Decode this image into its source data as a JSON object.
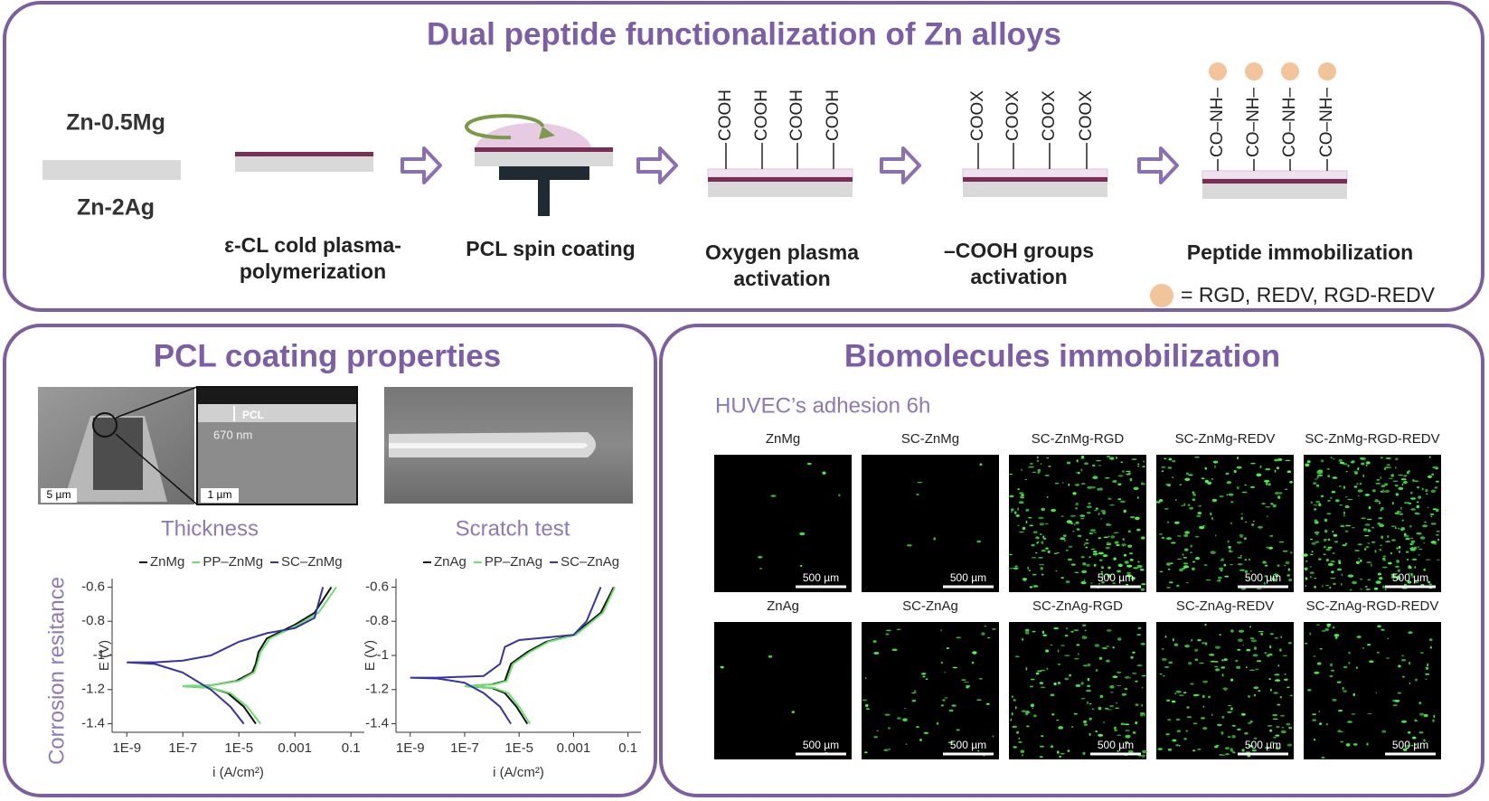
{
  "header": {
    "title": "Dual peptide functionalization of Zn alloys"
  },
  "process": {
    "materials": [
      "Zn-0.5Mg",
      "Zn-2Ag"
    ],
    "steps": [
      {
        "lines": [
          "ε-CL cold plasma-",
          "polymerization"
        ]
      },
      {
        "lines": [
          "PCL spin coating"
        ]
      },
      {
        "lines": [
          "Oxygen plasma",
          "activation"
        ]
      },
      {
        "lines": [
          "–COOH groups",
          "activation"
        ]
      },
      {
        "lines": [
          "Peptide immobilization"
        ]
      }
    ],
    "group_labels": [
      "COOH",
      "COOX",
      "CO–NH–"
    ],
    "legend": "= RGD, REDV, RGD-REDV"
  },
  "pcl": {
    "title": "PCL coating properties",
    "sem": {
      "layer": "PCL",
      "thickness": "670 nm",
      "scale_left": "5 µm",
      "scale_right": "1 µm"
    },
    "thickness_label": "Thickness",
    "scratch_label": "Scratch test",
    "side_label": "Corrosion resitance",
    "plots": [
      {
        "type": "line",
        "xlabel": "i (A/cm²)",
        "ylabel": "E (V)",
        "xscale": "log",
        "xlim": [
          3e-10,
          0.3
        ],
        "ylim": [
          -1.45,
          -0.55
        ],
        "xticks": [
          {
            "value": 1e-09,
            "label": "1E-9"
          },
          {
            "value": 1e-07,
            "label": "1E-7"
          },
          {
            "value": 1e-05,
            "label": "1E-5"
          },
          0.001,
          0.1
        ],
        "yticks": [
          -0.6,
          -0.8,
          -1.0,
          -1.2,
          -1.4
        ],
        "series": [
          {
            "name": "ZnMg",
            "color": "#111111",
            "x": [
              4e-05,
              1.5e-05,
              4e-06,
              1e-06,
              1e-07,
              1e-06,
              8e-06,
              3e-05,
              4e-05,
              5e-05,
              0.0001,
              0.001,
              0.005,
              0.02
            ],
            "y": [
              -1.4,
              -1.3,
              -1.22,
              -1.19,
              -1.18,
              -1.175,
              -1.15,
              -1.1,
              -1.05,
              -0.98,
              -0.9,
              -0.82,
              -0.75,
              -0.6
            ]
          },
          {
            "name": "PP–ZnMg",
            "color": "#6ee06e",
            "x": [
              6e-05,
              2e-05,
              5e-06,
              1e-06,
              1e-07,
              1e-06,
              1e-05,
              3.5e-05,
              4.5e-05,
              6e-05,
              0.00013,
              0.0013,
              0.007,
              0.03
            ],
            "y": [
              -1.4,
              -1.3,
              -1.22,
              -1.19,
              -1.18,
              -1.175,
              -1.15,
              -1.1,
              -1.05,
              -0.98,
              -0.9,
              -0.82,
              -0.75,
              -0.6
            ]
          },
          {
            "name": "SC–ZnMg",
            "color": "#3434a8",
            "x": [
              1.5e-05,
              5e-06,
              1e-06,
              1e-07,
              1e-08,
              1e-09,
              1e-08,
              1e-07,
              1e-06,
              1e-05,
              0.0001,
              0.001,
              0.005,
              0.01
            ],
            "y": [
              -1.4,
              -1.3,
              -1.2,
              -1.1,
              -1.05,
              -1.04,
              -1.04,
              -1.03,
              -1.0,
              -0.92,
              -0.87,
              -0.84,
              -0.78,
              -0.6
            ]
          }
        ]
      },
      {
        "type": "line",
        "xlabel": "i (A/cm²)",
        "ylabel": "E (V)",
        "xscale": "log",
        "xlim": [
          3e-10,
          0.3
        ],
        "ylim": [
          -1.45,
          -0.55
        ],
        "xticks": [
          {
            "value": 1e-09,
            "label": "1E-9"
          },
          {
            "value": 1e-07,
            "label": "1E-7"
          },
          {
            "value": 1e-05,
            "label": "1E-5"
          },
          0.001,
          0.1
        ],
        "yticks": [
          -0.6,
          -0.8,
          -1.0,
          -1.2,
          -1.4
        ],
        "series": [
          {
            "name": "ZnAg",
            "color": "#111111",
            "x": [
              2e-05,
              8e-06,
              3e-06,
              1e-06,
              1e-07,
              1e-06,
              3e-06,
              5e-06,
              2e-05,
              0.0001,
              0.001,
              0.01,
              0.03
            ],
            "y": [
              -1.4,
              -1.3,
              -1.22,
              -1.19,
              -1.18,
              -1.17,
              -1.15,
              -1.05,
              -0.98,
              -0.92,
              -0.88,
              -0.75,
              -0.6
            ]
          },
          {
            "name": "PP–ZnAg",
            "color": "#6ee06e",
            "x": [
              2.5e-05,
              1e-05,
              4e-06,
              1.2e-06,
              1e-07,
              1.2e-06,
              3.5e-06,
              6e-06,
              2.5e-05,
              0.00012,
              0.0012,
              0.012,
              0.033
            ],
            "y": [
              -1.4,
              -1.3,
              -1.22,
              -1.19,
              -1.18,
              -1.17,
              -1.15,
              -1.05,
              -0.98,
              -0.92,
              -0.88,
              -0.75,
              -0.6
            ]
          },
          {
            "name": "SC–ZnAg",
            "color": "#3434a8",
            "x": [
              5e-06,
              2e-06,
              5e-07,
              1e-07,
              1e-08,
              1e-09,
              1e-08,
              5e-07,
              2e-06,
              3e-06,
              1e-05,
              0.001,
              0.003,
              0.01
            ],
            "y": [
              -1.4,
              -1.3,
              -1.22,
              -1.16,
              -1.135,
              -1.13,
              -1.13,
              -1.12,
              -1.05,
              -0.95,
              -0.91,
              -0.88,
              -0.8,
              -0.6
            ]
          }
        ]
      }
    ]
  },
  "bio": {
    "title": "Biomolecules immobilization",
    "subtitle": "HUVEC’s adhesion 6h",
    "scale": "500 µm",
    "rows": [
      [
        "ZnMg",
        "SC-ZnMg",
        "SC-ZnMg-RGD",
        "SC-ZnMg-REDV",
        "SC-ZnMg-RGD-REDV"
      ],
      [
        "ZnAg",
        "SC-ZnAg",
        "SC-ZnAg-RGD",
        "SC-ZnAg-REDV",
        "SC-ZnAg-RGD-REDV"
      ]
    ]
  }
}
